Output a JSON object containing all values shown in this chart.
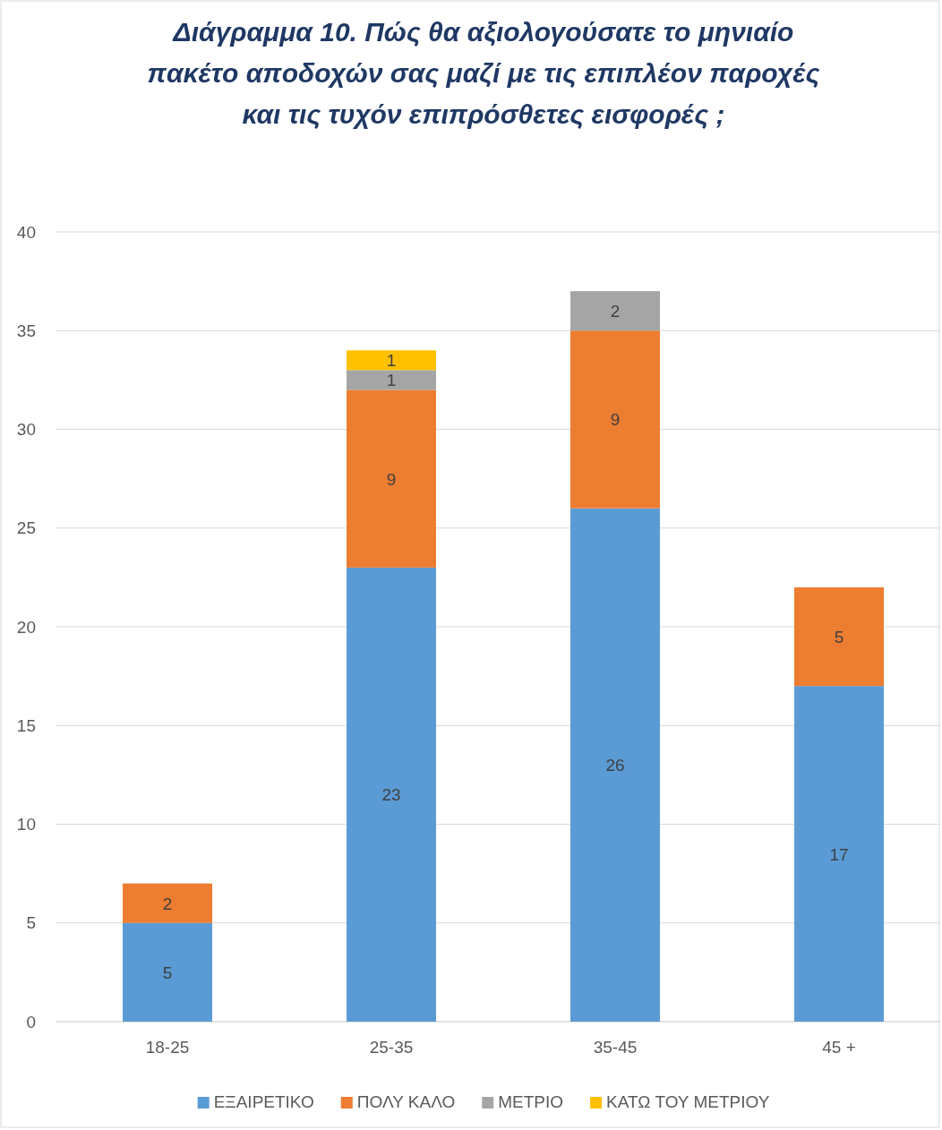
{
  "chart_data": {
    "type": "bar",
    "title": "Διάγραμμα 10. Πώς θα αξιολογούσατε το μηνιαίο πακέτο αποδοχών σας μαζί με τις επιπλέον παροχές και τις τυχόν επιπρόσθετες εισφορές ;",
    "categories": [
      "18-25",
      "25-35",
      "35-45",
      "45 +"
    ],
    "series": [
      {
        "name": "ΕΞΑΙΡΕΤΙΚΟ",
        "color": "#5b9bd5",
        "values": [
          5,
          23,
          26,
          17
        ]
      },
      {
        "name": "ΠΟΛΥ ΚΑΛΟ",
        "color": "#ed7d31",
        "values": [
          2,
          9,
          9,
          5
        ]
      },
      {
        "name": "ΜΕΤΡΙΟ",
        "color": "#a5a5a5",
        "values": [
          null,
          1,
          2,
          null
        ]
      },
      {
        "name": "ΚΑΤΩ ΤΟΥ ΜΕΤΡΙΟΥ",
        "color": "#ffc000",
        "values": [
          null,
          1,
          null,
          null
        ]
      }
    ],
    "stacked": true,
    "ylim": [
      0,
      40
    ],
    "yticks": [
      0,
      5,
      10,
      15,
      20,
      25,
      30,
      35,
      40
    ],
    "grid": "y",
    "legend": "bottom",
    "data_labels": true
  }
}
